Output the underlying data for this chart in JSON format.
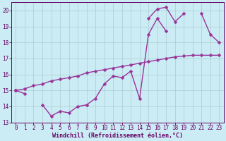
{
  "xlabel": "Windchill (Refroidissement éolien,°C)",
  "x": [
    0,
    1,
    2,
    3,
    4,
    5,
    6,
    7,
    8,
    9,
    10,
    11,
    12,
    13,
    14,
    15,
    16,
    17,
    18,
    19,
    20,
    21,
    22,
    23
  ],
  "line_diagonal": [
    15.0,
    15.1,
    15.3,
    15.4,
    15.6,
    15.7,
    15.8,
    15.9,
    16.1,
    16.2,
    16.3,
    16.4,
    16.5,
    16.6,
    16.7,
    16.8,
    16.9,
    17.0,
    17.1,
    17.15,
    17.2,
    17.2,
    17.2,
    17.2
  ],
  "line_upper": [
    15.0,
    14.8,
    null,
    null,
    null,
    null,
    null,
    null,
    null,
    null,
    null,
    null,
    null,
    null,
    null,
    19.5,
    20.1,
    20.2,
    19.3,
    19.8,
    null,
    19.8,
    18.5,
    18.0
  ],
  "line_lower": [
    15.0,
    null,
    null,
    14.1,
    13.4,
    13.7,
    13.6,
    14.0,
    14.1,
    14.5,
    15.4,
    15.9,
    15.8,
    16.2,
    14.5,
    18.5,
    19.5,
    18.7,
    null,
    null,
    null,
    null,
    null,
    null
  ],
  "ylim": [
    13,
    20.5
  ],
  "xlim": [
    -0.5,
    23.5
  ],
  "yticks": [
    13,
    14,
    15,
    16,
    17,
    18,
    19,
    20
  ],
  "xticks": [
    0,
    1,
    2,
    3,
    4,
    5,
    6,
    7,
    8,
    9,
    10,
    11,
    12,
    13,
    14,
    15,
    16,
    17,
    18,
    19,
    20,
    21,
    22,
    23
  ],
  "line_color": "#993399",
  "bg_color": "#cbecf4",
  "grid_color": "#aacccc",
  "axes_color": "#660066",
  "markersize": 2.5,
  "linewidth": 1.0,
  "xlabel_fontsize": 6,
  "tick_fontsize": 5.5,
  "fig_bg": "#cbecf4"
}
